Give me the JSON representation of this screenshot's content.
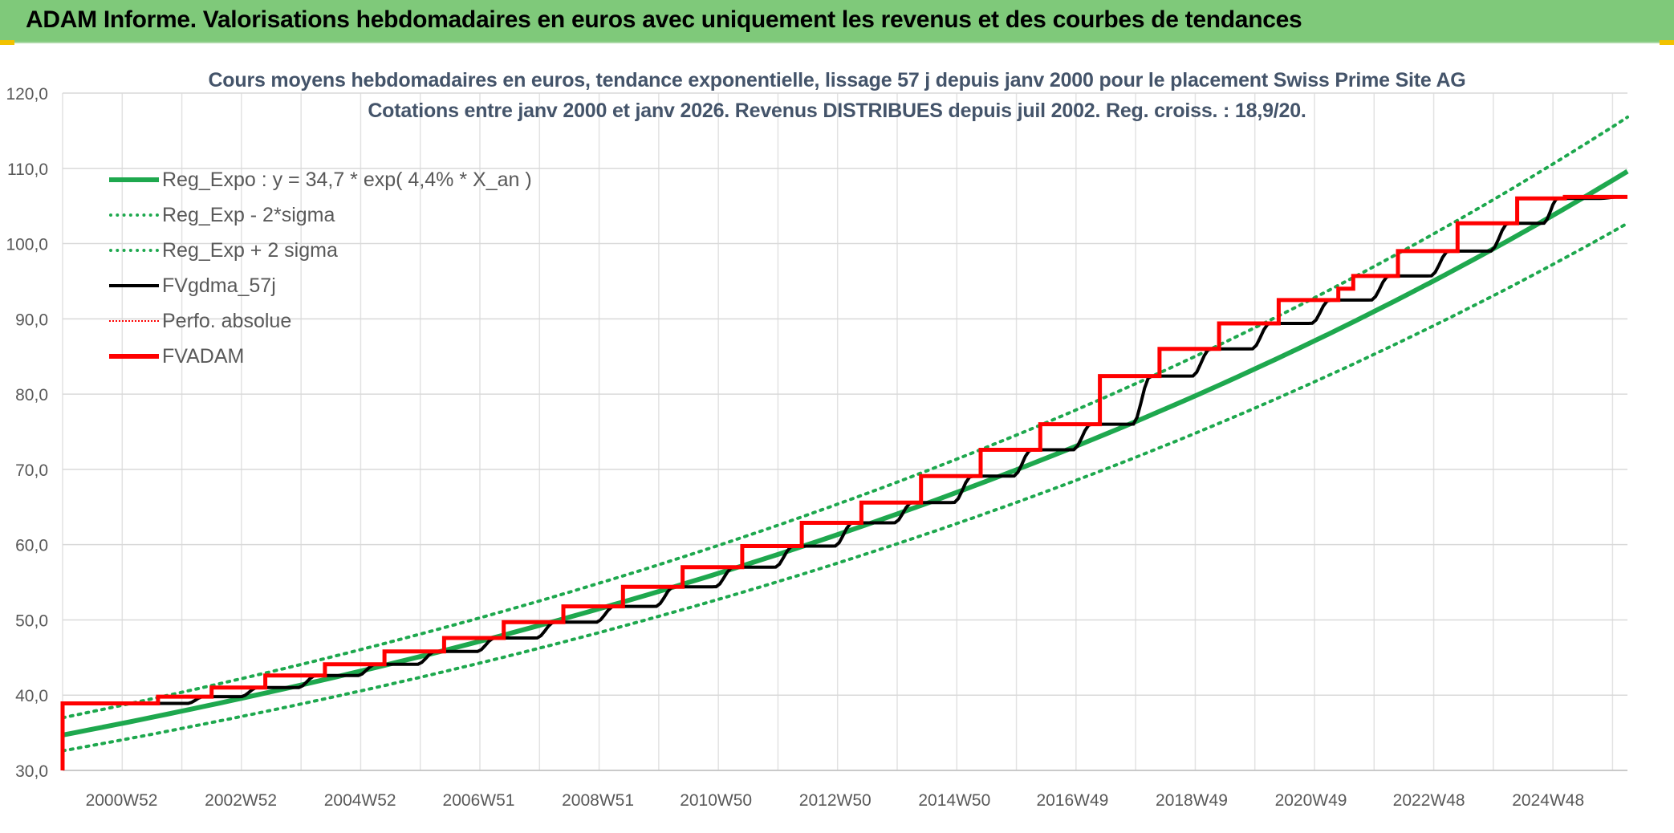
{
  "banner": {
    "title": "ADAM Informe. Valorisations hebdomadaires en euros avec uniquement les revenus et des courbes de tendances"
  },
  "chart_data": {
    "type": "line",
    "title": "Cours moyens hebdomadaires en euros, tendance exponentielle, lissage 57 j depuis janv 2000 pour le placement Swiss Prime Site AG",
    "subtitle": "Cotations entre janv 2000 et janv 2026. Revenus DISTRIBUES depuis juil 2002. Reg. croiss. : 18,9/20.",
    "xlabel": "",
    "ylabel": "",
    "ylim": [
      30,
      120
    ],
    "y_ticks": [
      "30,0",
      "40,0",
      "50,0",
      "60,0",
      "70,0",
      "80,0",
      "90,0",
      "100,0",
      "110,0",
      "120,0"
    ],
    "x_ticks": [
      "2000W52",
      "2002W52",
      "2004W52",
      "2006W51",
      "2008W51",
      "2010W50",
      "2012W50",
      "2014W50",
      "2016W49",
      "2018W49",
      "2020W49",
      "2022W48",
      "2024W48"
    ],
    "x_tick_years": [
      2000.99,
      2002.99,
      2004.99,
      2006.98,
      2008.98,
      2010.96,
      2012.96,
      2014.96,
      2016.94,
      2018.94,
      2020.94,
      2022.92,
      2024.92
    ],
    "xlim": [
      2000.0,
      2026.25
    ],
    "grid": true,
    "legend_position": "top-left",
    "colors": {
      "reg_expo": "#1ea84e",
      "fvgdma": "#000000",
      "perfo": "#ff0000",
      "fvadam": "#ff0000"
    },
    "series": [
      {
        "name": "Reg_Expo : y = 34,7 * exp( 4,4% *  X_an )",
        "style": "solid-green",
        "x": [
          2000.0,
          2026.25
        ],
        "y": [
          34.7,
          109.6
        ]
      },
      {
        "name": "Reg_Exp - 2*sigma",
        "style": "dot-green",
        "x": [
          2000.0,
          2026.25
        ],
        "y": [
          32.6,
          102.7
        ]
      },
      {
        "name": "Reg_Exp + 2 sigma",
        "style": "dot-green",
        "x": [
          2000.0,
          2026.25
        ],
        "y": [
          37.0,
          116.8
        ]
      },
      {
        "name": "FVgdma_57j",
        "style": "solid-black",
        "x": [
          2000.0,
          2001.6,
          2002.5,
          2003.4,
          2004.4,
          2005.4,
          2006.4,
          2007.4,
          2008.4,
          2009.4,
          2010.4,
          2011.4,
          2012.4,
          2013.4,
          2014.4,
          2015.4,
          2016.4,
          2017.4,
          2018.4,
          2019.4,
          2020.4,
          2021.4,
          2022.4,
          2023.4,
          2024.4,
          2025.2,
          2026.25
        ],
        "y": [
          38.9,
          38.9,
          39.8,
          41.0,
          42.6,
          44.1,
          45.8,
          47.6,
          49.7,
          51.8,
          54.4,
          57.0,
          59.8,
          62.9,
          65.6,
          69.1,
          72.6,
          76.0,
          82.4,
          86.0,
          89.4,
          92.5,
          95.7,
          99.0,
          102.7,
          106.0,
          106.2
        ]
      },
      {
        "name": "Perfo. absolue",
        "style": "dot-red",
        "x": [
          2000.0,
          2001.5
        ],
        "y": [
          38.9,
          38.9
        ]
      },
      {
        "name": "FVADAM",
        "style": "solid-red",
        "x": [
          2000.0,
          2001.6,
          2002.5,
          2003.4,
          2004.4,
          2005.4,
          2006.4,
          2007.4,
          2008.4,
          2009.4,
          2010.4,
          2011.4,
          2012.4,
          2013.4,
          2014.4,
          2015.4,
          2016.4,
          2017.4,
          2018.4,
          2019.4,
          2020.4,
          2021.4,
          2021.65,
          2022.4,
          2023.4,
          2024.4,
          2025.2
        ],
        "y": [
          38.9,
          39.8,
          41.0,
          42.6,
          44.1,
          45.8,
          47.6,
          49.7,
          51.8,
          54.4,
          57.0,
          59.8,
          62.9,
          65.6,
          69.1,
          72.6,
          76.0,
          82.4,
          86.0,
          89.4,
          92.5,
          94.0,
          95.7,
          99.0,
          102.7,
          106.0,
          106.2
        ],
        "start_y": 30.0,
        "end_x": 2026.25
      }
    ]
  }
}
